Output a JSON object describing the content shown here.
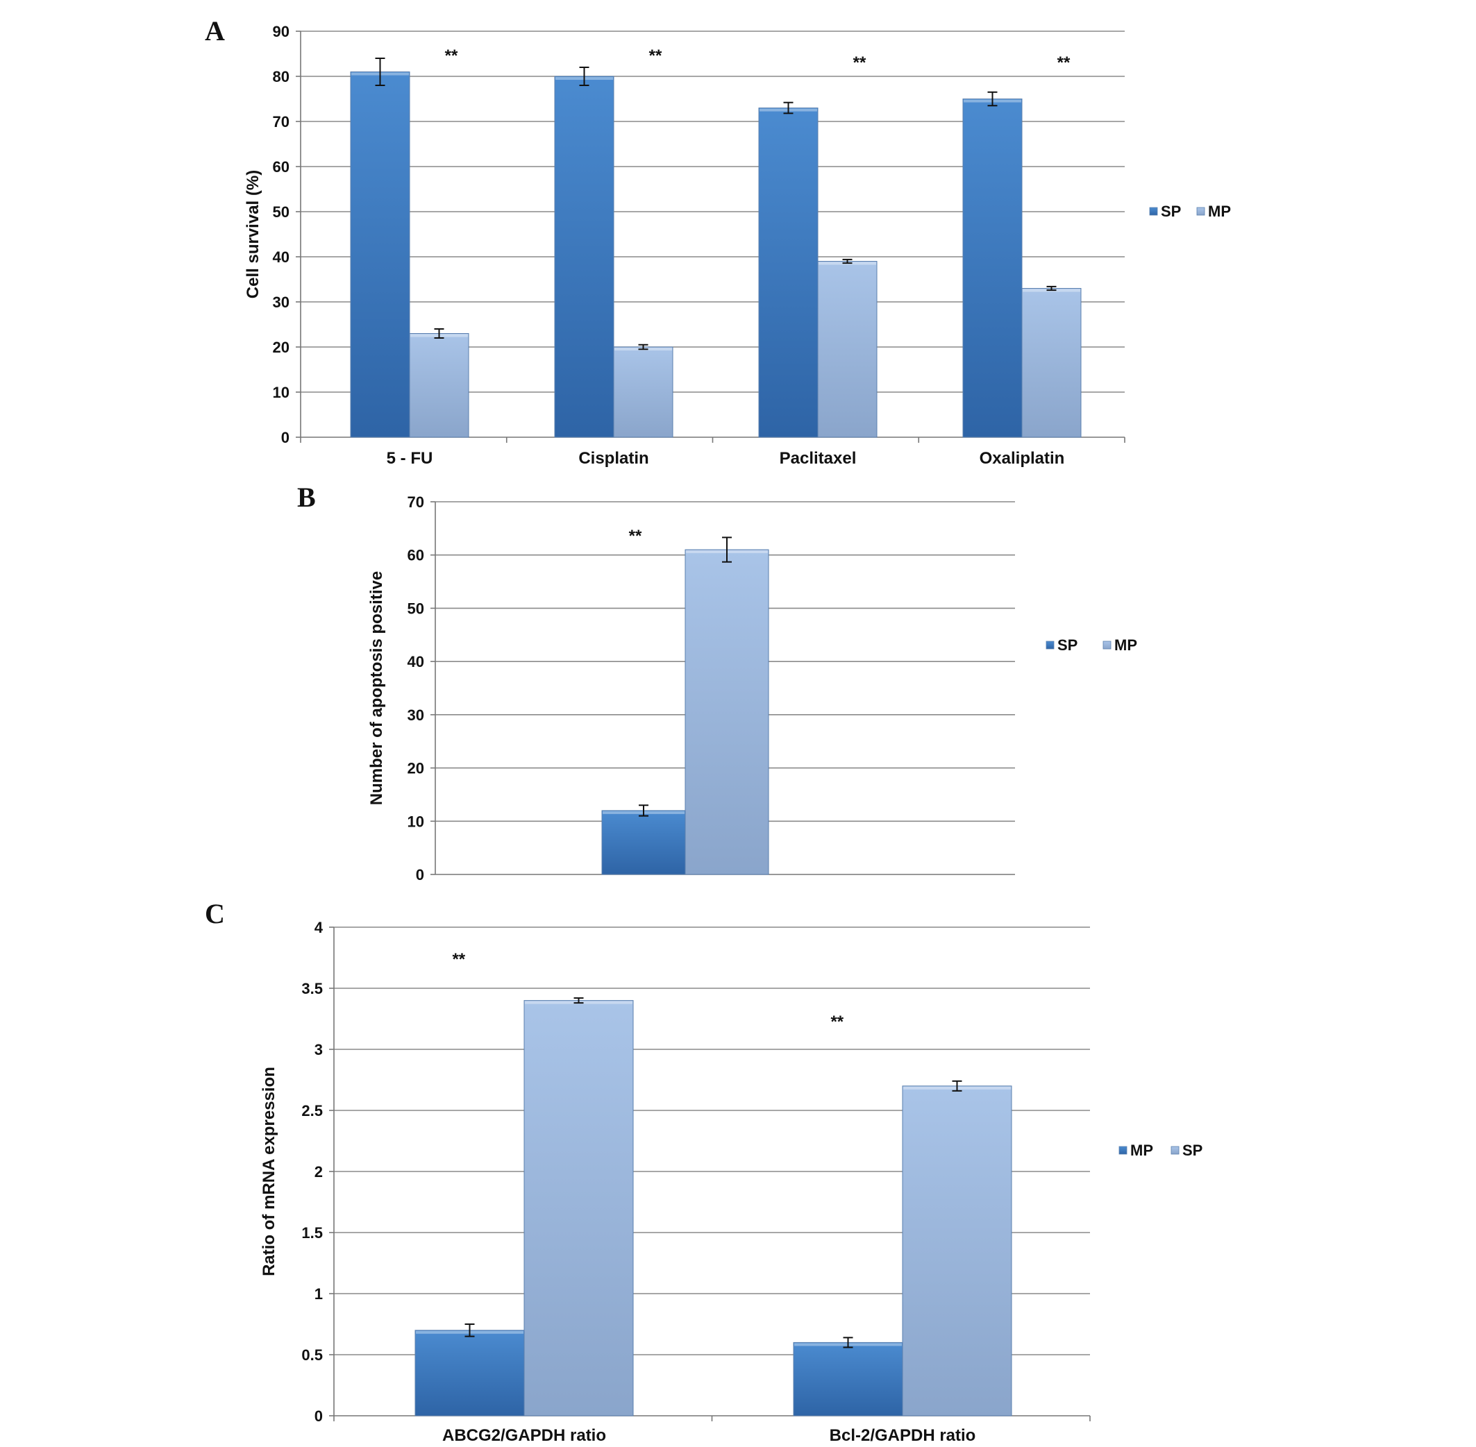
{
  "chart_data": [
    {
      "panel": "A",
      "type": "bar",
      "categories": [
        "5 - FU",
        "Cisplatin",
        "Paclitaxel",
        "Oxaliplatin"
      ],
      "series": [
        {
          "name": "SP",
          "values": [
            81,
            80,
            73,
            75
          ],
          "errors": [
            3,
            2,
            1.2,
            1.5
          ],
          "color": "#3f7dc4"
        },
        {
          "name": "MP",
          "values": [
            23,
            20,
            39,
            33
          ],
          "errors": [
            1,
            0.5,
            0.4,
            0.4
          ],
          "color": "#9fbbe0"
        }
      ],
      "ylabel": "Cell survival (%)",
      "ylim": [
        0,
        90
      ],
      "yticks": [
        0,
        10,
        20,
        30,
        40,
        50,
        60,
        70,
        80,
        90
      ],
      "significance": [
        "**",
        "**",
        "**",
        "**"
      ],
      "legend": "right",
      "grid": true
    },
    {
      "panel": "B",
      "type": "bar",
      "categories": [
        ""
      ],
      "series": [
        {
          "name": "SP",
          "values": [
            12
          ],
          "errors": [
            1
          ],
          "color": "#3f7dc4"
        },
        {
          "name": "MP",
          "values": [
            61
          ],
          "errors": [
            2.3
          ],
          "color": "#9fbbe0"
        }
      ],
      "ylabel": "Number of apoptosis positive",
      "ylim": [
        0,
        70
      ],
      "yticks": [
        0,
        10,
        20,
        30,
        40,
        50,
        60,
        70
      ],
      "significance": [
        "**"
      ],
      "legend": "right",
      "grid": true
    },
    {
      "panel": "C",
      "type": "bar",
      "categories": [
        "ABCG2/GAPDH ratio",
        "Bcl-2/GAPDH ratio"
      ],
      "series": [
        {
          "name": "MP",
          "values": [
            0.7,
            0.6
          ],
          "errors": [
            0.05,
            0.04
          ],
          "color": "#3f7dc4"
        },
        {
          "name": "SP",
          "values": [
            3.4,
            2.7
          ],
          "errors": [
            0.02,
            0.04
          ],
          "color": "#9fbbe0"
        }
      ],
      "ylabel": "Ratio of mRNA expression",
      "ylim": [
        0,
        4
      ],
      "yticks": [
        "0",
        "0.5",
        "1",
        "1.5",
        "2",
        "2.5",
        "3",
        "3.5",
        "4"
      ],
      "significance": [
        "**",
        "**"
      ],
      "legend": "right",
      "grid": true
    }
  ]
}
